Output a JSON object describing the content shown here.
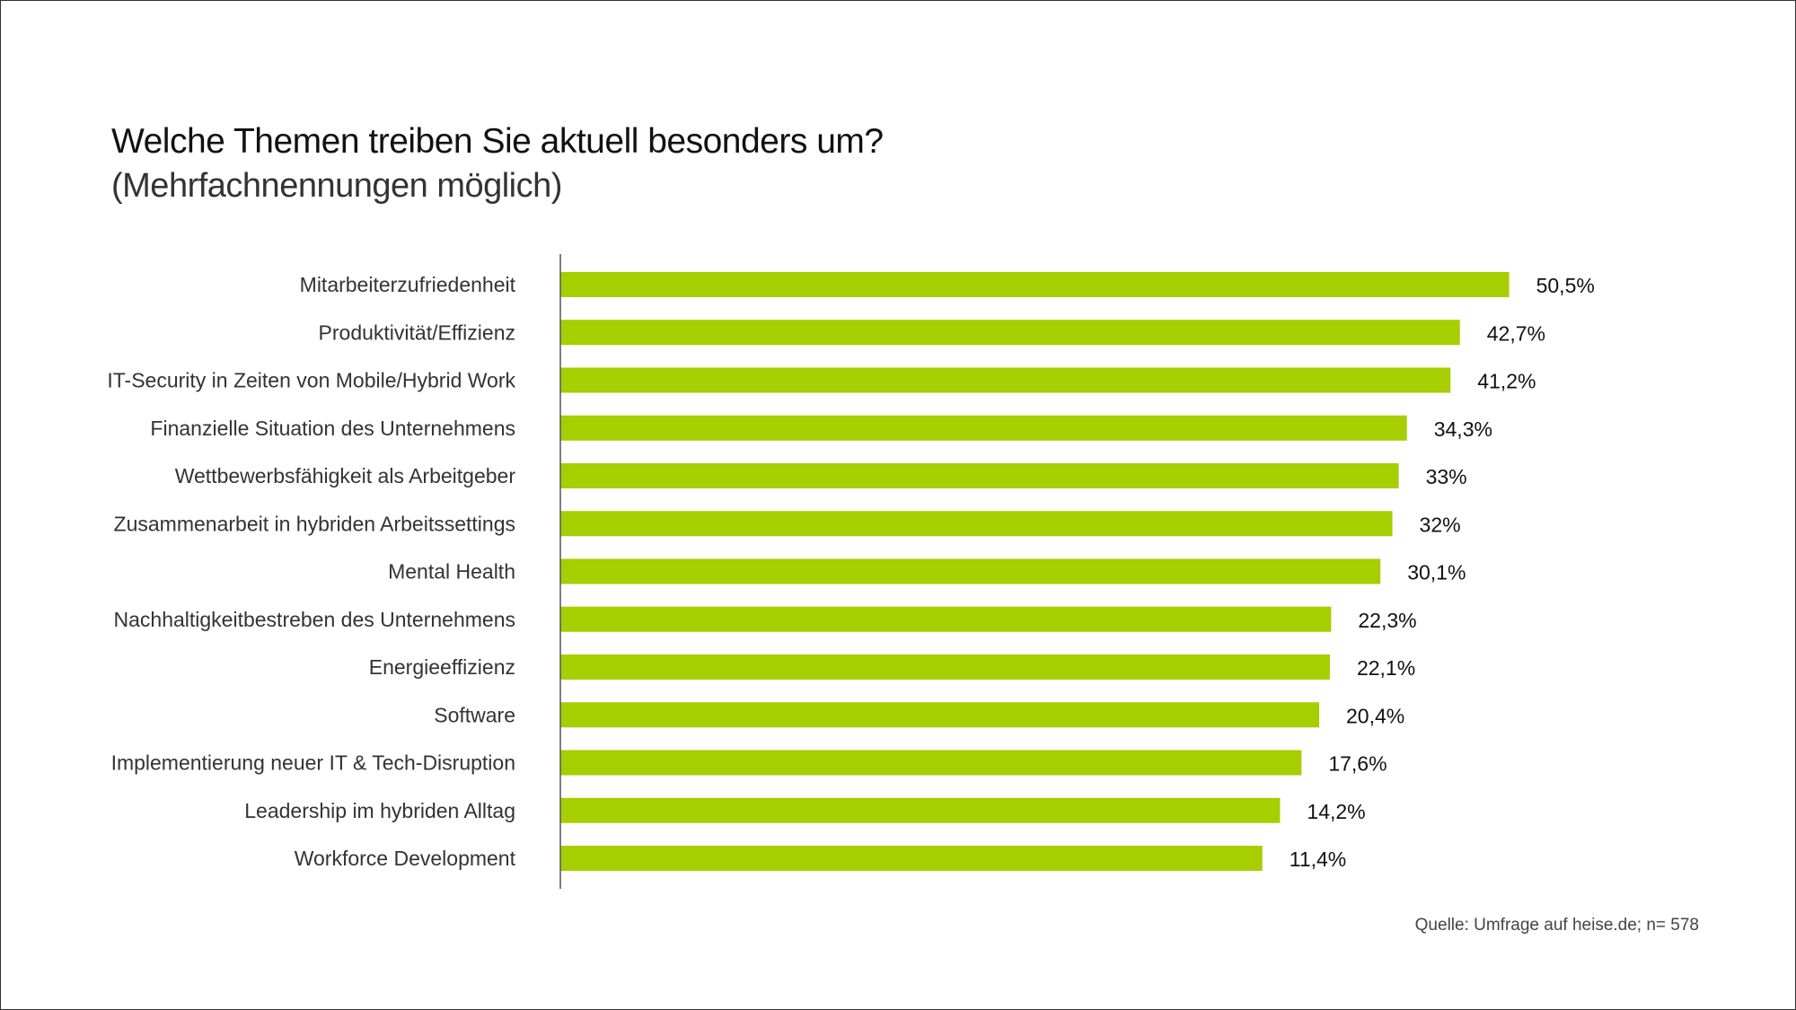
{
  "chart_data": {
    "type": "bar",
    "orientation": "horizontal",
    "title": "Welche Themen treiben Sie aktuell besonders um?",
    "subtitle": "(Mehrfachnennungen möglich)",
    "categories": [
      "Mitarbeiterzufriedenheit",
      "Produktivität/Effizienz",
      "IT-Security in Zeiten von Mobile/Hybrid Work",
      "Finanzielle Situation des Unternehmens",
      "Wettbewerbsfähigkeit als Arbeitgeber",
      "Zusammenarbeit in hybriden Arbeitssettings",
      "Mental Health",
      "Nachhaltigkeitbestreben des Unternehmens",
      "Energieeffizienz",
      "Software",
      "Implementierung neuer IT & Tech-Disruption",
      "Leadership im hybriden Alltag",
      "Workforce Development"
    ],
    "values": [
      50.5,
      42.7,
      41.2,
      34.3,
      33,
      32,
      30.1,
      22.3,
      22.1,
      20.4,
      17.6,
      14.2,
      11.4
    ],
    "value_labels": [
      "50,5%",
      "42,7%",
      "41,2%",
      "34,3%",
      "33%",
      "32%",
      "30,1%",
      "22,3%",
      "22,1%",
      "20,4%",
      "17,6%",
      "14,2%",
      "11,4%"
    ],
    "unit": "%",
    "grid": false,
    "legend": "none",
    "bar_color": "#a6ce00",
    "source": "Quelle: Umfrage auf heise.de; n= 578"
  }
}
